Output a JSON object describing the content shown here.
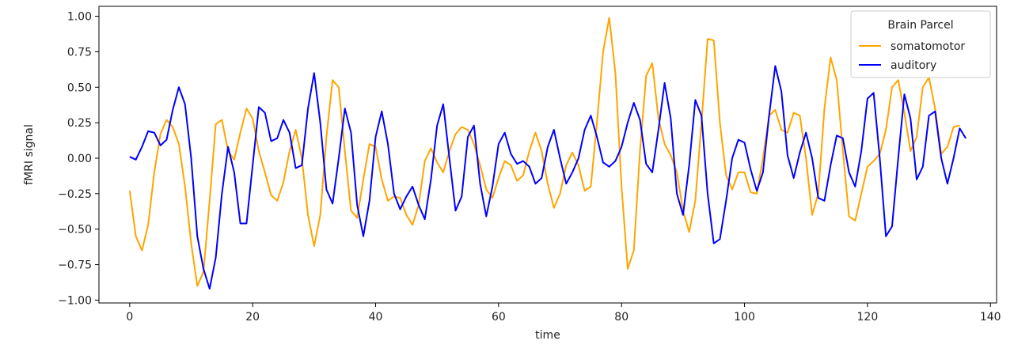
{
  "chart_data": {
    "type": "line",
    "xlabel": "time",
    "ylabel": "fMRI signal",
    "xlim": [
      -5,
      141
    ],
    "ylim": [
      -1.02,
      1.07
    ],
    "x_ticks": [
      0,
      20,
      40,
      60,
      80,
      100,
      120,
      140
    ],
    "x_tick_labels": [
      "0",
      "20",
      "40",
      "60",
      "80",
      "100",
      "120",
      "140"
    ],
    "y_ticks": [
      -1.0,
      -0.75,
      -0.5,
      -0.25,
      0.0,
      0.25,
      0.5,
      0.75,
      1.0
    ],
    "y_tick_labels": [
      "−1.00",
      "−0.75",
      "−0.50",
      "−0.25",
      "0.00",
      "0.25",
      "0.50",
      "0.75",
      "1.00"
    ],
    "grid": false,
    "legend": {
      "title": "Brain Parcel",
      "placement": "top-right"
    },
    "series": [
      {
        "name": "somatomotor",
        "color": "#ffa500",
        "values": [
          -0.23,
          -0.55,
          -0.65,
          -0.47,
          -0.1,
          0.17,
          0.27,
          0.22,
          0.1,
          -0.2,
          -0.6,
          -0.9,
          -0.8,
          -0.3,
          0.24,
          0.27,
          0.05,
          -0.01,
          0.18,
          0.35,
          0.28,
          0.05,
          -0.1,
          -0.26,
          -0.3,
          -0.17,
          0.05,
          0.2,
          0.0,
          -0.4,
          -0.62,
          -0.4,
          0.15,
          0.55,
          0.5,
          0.05,
          -0.37,
          -0.42,
          -0.15,
          0.1,
          0.08,
          -0.15,
          -0.3,
          -0.27,
          -0.28,
          -0.4,
          -0.47,
          -0.33,
          -0.02,
          0.07,
          -0.03,
          -0.1,
          0.05,
          0.17,
          0.22,
          0.2,
          0.1,
          -0.05,
          -0.22,
          -0.28,
          -0.14,
          -0.02,
          -0.05,
          -0.16,
          -0.12,
          0.05,
          0.18,
          0.05,
          -0.18,
          -0.35,
          -0.25,
          -0.05,
          0.04,
          -0.05,
          -0.23,
          -0.2,
          0.25,
          0.75,
          0.99,
          0.6,
          -0.2,
          -0.78,
          -0.65,
          0.05,
          0.58,
          0.67,
          0.28,
          0.1,
          0.02,
          -0.1,
          -0.37,
          -0.52,
          -0.3,
          0.25,
          0.84,
          0.83,
          0.25,
          -0.12,
          -0.22,
          -0.1,
          -0.1,
          -0.24,
          -0.25,
          0.0,
          0.3,
          0.34,
          0.2,
          0.18,
          0.32,
          0.3,
          0.0,
          -0.4,
          -0.25,
          0.35,
          0.71,
          0.55,
          0.05,
          -0.41,
          -0.44,
          -0.25,
          -0.06,
          -0.02,
          0.03,
          0.2,
          0.5,
          0.55,
          0.32,
          0.05,
          0.15,
          0.5,
          0.57,
          0.35,
          0.03,
          0.08,
          0.22,
          0.23
        ]
      },
      {
        "name": "auditory",
        "color": "#0000ff",
        "values": [
          0.01,
          -0.01,
          0.08,
          0.19,
          0.18,
          0.09,
          0.13,
          0.34,
          0.5,
          0.38,
          0.0,
          -0.55,
          -0.78,
          -0.92,
          -0.7,
          -0.25,
          0.08,
          -0.1,
          -0.46,
          -0.46,
          -0.05,
          0.36,
          0.32,
          0.12,
          0.14,
          0.27,
          0.18,
          -0.07,
          -0.05,
          0.35,
          0.6,
          0.25,
          -0.22,
          -0.32,
          0.0,
          0.35,
          0.18,
          -0.33,
          -0.55,
          -0.3,
          0.15,
          0.33,
          0.1,
          -0.25,
          -0.36,
          -0.27,
          -0.2,
          -0.33,
          -0.43,
          -0.15,
          0.23,
          0.38,
          0.0,
          -0.37,
          -0.27,
          0.15,
          0.23,
          -0.18,
          -0.41,
          -0.2,
          0.1,
          0.18,
          0.03,
          -0.04,
          -0.02,
          -0.06,
          -0.18,
          -0.14,
          0.08,
          0.2,
          0.0,
          -0.18,
          -0.1,
          0.0,
          0.2,
          0.3,
          0.15,
          -0.03,
          -0.06,
          -0.02,
          0.08,
          0.25,
          0.39,
          0.27,
          -0.04,
          -0.1,
          0.2,
          0.53,
          0.28,
          -0.25,
          -0.4,
          -0.05,
          0.41,
          0.3,
          -0.25,
          -0.6,
          -0.57,
          -0.3,
          0.0,
          0.13,
          0.11,
          -0.08,
          -0.23,
          -0.1,
          0.3,
          0.65,
          0.47,
          0.02,
          -0.14,
          0.04,
          0.18,
          0.0,
          -0.28,
          -0.3,
          -0.05,
          0.16,
          0.14,
          -0.1,
          -0.2,
          0.05,
          0.42,
          0.46,
          0.0,
          -0.55,
          -0.48,
          0.0,
          0.45,
          0.28,
          -0.15,
          -0.06,
          0.3,
          0.33,
          0.0,
          -0.18,
          0.0,
          0.21,
          0.14
        ]
      }
    ]
  }
}
